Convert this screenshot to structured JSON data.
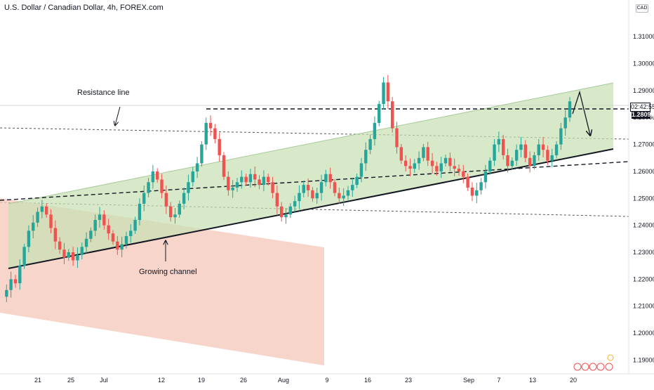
{
  "chart_data": {
    "type": "candlestick",
    "title": "U.S. Dollar / Canadian Dollar, 4h, FOREX.com",
    "currency": "CAD",
    "y_axis": {
      "ylim": [
        1.1849,
        1.3236
      ],
      "ticks": [
        1.19,
        1.2,
        1.21,
        1.22,
        1.23,
        1.24,
        1.25,
        1.26,
        1.27,
        1.28,
        1.29,
        1.3,
        1.31
      ],
      "tick_labels": [
        "1.19000",
        "1.20000",
        "1.21000",
        "1.22000",
        "1.23000",
        "1.24000",
        "1.25000",
        "1.26000",
        "1.27000",
        "1.28000",
        "1.29000",
        "1.30000",
        "1.31000"
      ]
    },
    "x_axis": {
      "tick_labels": [
        "21",
        "25",
        "Jul",
        "12",
        "19",
        "26",
        "Aug",
        "9",
        "16",
        "23",
        "Sep",
        "7",
        "13",
        "20"
      ]
    },
    "last_price": "1.28099",
    "countdown": "02:42:55",
    "annotations": [
      {
        "text": "Resistance line"
      },
      {
        "text": "Growing channel"
      }
    ],
    "colors": {
      "up": "#26a69a",
      "down": "#ef5350",
      "channel_fill": "#c8e0b4",
      "descending_zone_fill": "#f6c7b8",
      "axis_text": "#131722"
    },
    "price_path": [
      [
        1.2135,
        1.216,
        1.22,
        1.2185,
        1.225,
        1.232,
        1.238,
        1.241,
        1.245,
        1.247,
        1.244,
        1.239,
        1.234,
        1.231,
        1.228,
        1.23,
        1.227,
        1.229,
        1.232,
        1.235,
        1.238,
        1.242,
        1.244,
        1.24,
        1.237,
        1.234,
        1.231,
        1.233,
        1.236,
        1.238,
        1.242,
        1.248,
        1.252,
        1.256,
        1.26,
        1.257,
        1.252,
        1.247,
        1.243,
        1.244,
        1.248,
        1.252,
        1.256,
        1.26,
        1.263,
        1.27,
        1.278,
        1.276,
        1.272,
        1.266,
        1.258,
        1.253
      ],
      [
        1.254,
        1.256,
        1.258,
        1.256,
        1.259,
        1.257,
        1.255,
        1.258,
        1.256,
        1.252,
        1.247,
        1.243,
        1.244,
        1.247,
        1.249,
        1.252,
        1.255,
        1.253,
        1.25,
        1.252,
        1.256,
        1.259,
        1.256,
        1.252,
        1.25,
        1.251,
        1.253,
        1.255,
        1.258,
        1.263,
        1.268,
        1.272,
        1.278,
        1.285,
        1.293,
        1.286,
        1.276,
        1.269,
        1.264,
        1.262,
        1.261,
        1.263,
        1.265,
        1.269,
        1.264,
        1.262,
        1.26,
        1.263,
        1.265,
        1.262,
        1.261,
        1.26
      ],
      [
        1.258,
        1.254,
        1.251,
        1.253,
        1.256,
        1.26,
        1.264,
        1.27,
        1.272,
        1.266,
        1.262,
        1.264,
        1.268,
        1.27,
        1.265,
        1.262,
        1.266,
        1.27,
        1.268,
        1.264,
        1.266,
        1.27,
        1.276,
        1.28,
        1.286
      ]
    ]
  }
}
